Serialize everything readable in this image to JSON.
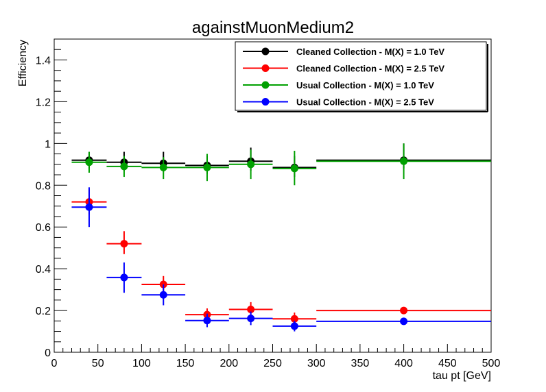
{
  "chart_data": {
    "type": "scatter",
    "title": "againstMuonMedium2",
    "xlabel": "tau pt [GeV]",
    "ylabel": "Efficiency",
    "xlim": [
      0,
      500
    ],
    "ylim": [
      0,
      1.5
    ],
    "x_ticks": [
      0,
      50,
      100,
      150,
      200,
      250,
      300,
      350,
      400,
      450,
      500
    ],
    "y_ticks": [
      0,
      0.2,
      0.4,
      0.6,
      0.8,
      1,
      1.2,
      1.4
    ],
    "x_tick_labels": [
      "0",
      "50",
      "100",
      "150",
      "200",
      "250",
      "300",
      "350",
      "400",
      "450",
      "500"
    ],
    "y_tick_labels": [
      "0",
      "0.2",
      "0.4",
      "0.6",
      "0.8",
      "1",
      "1.2",
      "1.4"
    ],
    "legend_position": "top-right",
    "grid": false,
    "series": [
      {
        "name": "Cleaned Collection - M(X) = 1.0 TeV",
        "color": "#000000",
        "points": [
          {
            "x": 40,
            "xlo": 20,
            "xhi": 60,
            "y": 0.92,
            "ylo": 0.88,
            "yhi": 0.96
          },
          {
            "x": 80,
            "xlo": 60,
            "xhi": 100,
            "y": 0.91,
            "ylo": 0.87,
            "yhi": 0.96
          },
          {
            "x": 125,
            "xlo": 100,
            "xhi": 150,
            "y": 0.905,
            "ylo": 0.865,
            "yhi": 0.96
          },
          {
            "x": 175,
            "xlo": 150,
            "xhi": 200,
            "y": 0.895,
            "ylo": 0.855,
            "yhi": 0.94
          },
          {
            "x": 225,
            "xlo": 200,
            "xhi": 250,
            "y": 0.915,
            "ylo": 0.87,
            "yhi": 0.98
          },
          {
            "x": 275,
            "xlo": 250,
            "xhi": 300,
            "y": 0.885,
            "ylo": 0.84,
            "yhi": 0.94
          },
          {
            "x": 400,
            "xlo": 300,
            "xhi": 500,
            "y": 0.92,
            "ylo": 0.88,
            "yhi": 1.0
          }
        ]
      },
      {
        "name": "Cleaned Collection - M(X) = 2.5 TeV",
        "color": "#ff0000",
        "points": [
          {
            "x": 40,
            "xlo": 20,
            "xhi": 60,
            "y": 0.72,
            "ylo": 0.66,
            "yhi": 0.78
          },
          {
            "x": 80,
            "xlo": 60,
            "xhi": 100,
            "y": 0.52,
            "ylo": 0.47,
            "yhi": 0.58
          },
          {
            "x": 125,
            "xlo": 100,
            "xhi": 150,
            "y": 0.325,
            "ylo": 0.285,
            "yhi": 0.365
          },
          {
            "x": 175,
            "xlo": 150,
            "xhi": 200,
            "y": 0.18,
            "ylo": 0.15,
            "yhi": 0.21
          },
          {
            "x": 225,
            "xlo": 200,
            "xhi": 250,
            "y": 0.205,
            "ylo": 0.175,
            "yhi": 0.24
          },
          {
            "x": 275,
            "xlo": 250,
            "xhi": 300,
            "y": 0.16,
            "ylo": 0.13,
            "yhi": 0.19
          },
          {
            "x": 400,
            "xlo": 300,
            "xhi": 500,
            "y": 0.2,
            "ylo": 0.19,
            "yhi": 0.21
          }
        ]
      },
      {
        "name": "Usual Collection - M(X) = 1.0 TeV",
        "color": "#00a000",
        "points": [
          {
            "x": 40,
            "xlo": 20,
            "xhi": 60,
            "y": 0.91,
            "ylo": 0.86,
            "yhi": 0.96
          },
          {
            "x": 80,
            "xlo": 60,
            "xhi": 100,
            "y": 0.89,
            "ylo": 0.84,
            "yhi": 0.94
          },
          {
            "x": 125,
            "xlo": 100,
            "xhi": 150,
            "y": 0.885,
            "ylo": 0.83,
            "yhi": 0.935
          },
          {
            "x": 175,
            "xlo": 150,
            "xhi": 200,
            "y": 0.885,
            "ylo": 0.82,
            "yhi": 0.95
          },
          {
            "x": 225,
            "xlo": 200,
            "xhi": 250,
            "y": 0.9,
            "ylo": 0.83,
            "yhi": 0.97
          },
          {
            "x": 275,
            "xlo": 250,
            "xhi": 300,
            "y": 0.88,
            "ylo": 0.8,
            "yhi": 0.965
          },
          {
            "x": 400,
            "xlo": 300,
            "xhi": 500,
            "y": 0.915,
            "ylo": 0.83,
            "yhi": 1.0
          }
        ]
      },
      {
        "name": "Usual Collection - M(X) = 2.5 TeV",
        "color": "#0000ff",
        "points": [
          {
            "x": 40,
            "xlo": 20,
            "xhi": 60,
            "y": 0.695,
            "ylo": 0.6,
            "yhi": 0.79
          },
          {
            "x": 80,
            "xlo": 60,
            "xhi": 100,
            "y": 0.358,
            "ylo": 0.285,
            "yhi": 0.43
          },
          {
            "x": 125,
            "xlo": 100,
            "xhi": 150,
            "y": 0.275,
            "ylo": 0.225,
            "yhi": 0.325
          },
          {
            "x": 175,
            "xlo": 150,
            "xhi": 200,
            "y": 0.152,
            "ylo": 0.12,
            "yhi": 0.185
          },
          {
            "x": 225,
            "xlo": 200,
            "xhi": 250,
            "y": 0.162,
            "ylo": 0.13,
            "yhi": 0.195
          },
          {
            "x": 275,
            "xlo": 250,
            "xhi": 300,
            "y": 0.125,
            "ylo": 0.1,
            "yhi": 0.15
          },
          {
            "x": 400,
            "xlo": 300,
            "xhi": 500,
            "y": 0.148,
            "ylo": 0.14,
            "yhi": 0.156
          }
        ]
      }
    ]
  }
}
